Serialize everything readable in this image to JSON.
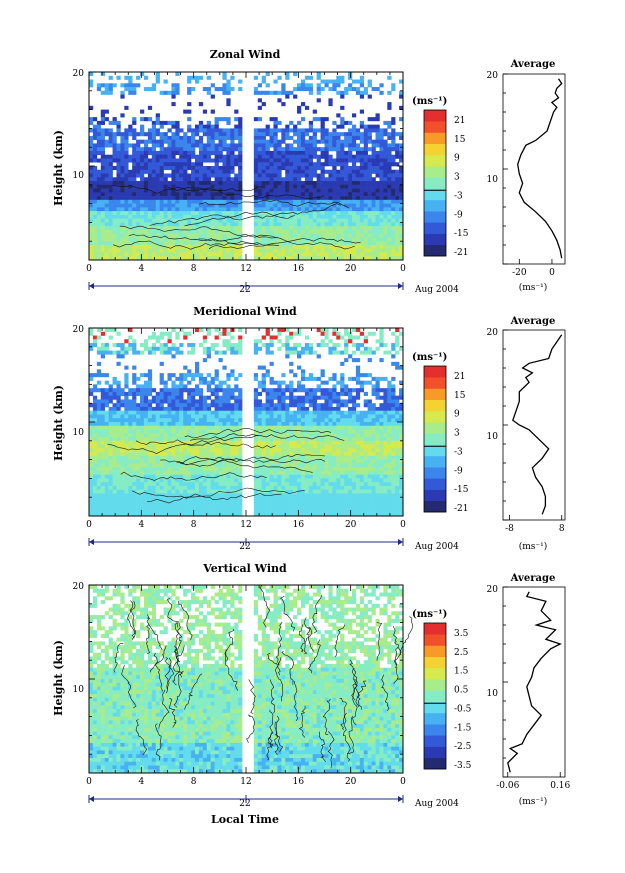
{
  "chart_data": [
    {
      "type": "heatmap",
      "title": "Zonal Wind",
      "ylabel": "Height (km)",
      "unit": "(ms⁻¹)",
      "x_ticks": [
        "0",
        "4",
        "8",
        "12",
        "16",
        "20",
        "0"
      ],
      "y_ticks": [
        "10",
        "20"
      ],
      "ylim": [
        0,
        20
      ],
      "xlim": [
        0,
        24
      ],
      "colorbar_ticks": [
        "21",
        "15",
        "9",
        "3",
        "-3",
        "-9",
        "-15",
        "-21"
      ],
      "date_day": "22",
      "date_label": "Aug 2004",
      "profile": {
        "title": "Average",
        "x_ticks": [
          "-20",
          "0"
        ],
        "xlim": [
          -30,
          8
        ],
        "xlabel": "(ms⁻¹)",
        "y_ticks": [
          "10",
          "20"
        ],
        "heights": [
          0.6,
          1.5,
          2.5,
          3.5,
          4.5,
          5.5,
          6.5,
          7.5,
          8.5,
          9.5,
          10.5,
          11.5,
          12.5,
          13.0,
          14.0,
          15.0,
          16.0,
          16.5,
          17.0,
          17.5,
          18.0,
          18.5,
          19.0,
          19.5
        ],
        "values": [
          6,
          5,
          3,
          0,
          -4,
          -10,
          -17,
          -20,
          -18,
          -20,
          -21,
          -19,
          -16,
          -10,
          -3,
          -1,
          1,
          3,
          0,
          4,
          2,
          3,
          6,
          4
        ]
      }
    },
    {
      "type": "heatmap",
      "title": "Meridional Wind",
      "ylabel": "Height (km)",
      "unit": "(ms⁻¹)",
      "x_ticks": [
        "0",
        "4",
        "8",
        "12",
        "16",
        "20",
        "0"
      ],
      "y_ticks": [
        "10",
        "20"
      ],
      "ylim": [
        0,
        20
      ],
      "xlim": [
        0,
        24
      ],
      "colorbar_ticks": [
        "21",
        "15",
        "9",
        "3",
        "-3",
        "-9",
        "-15",
        "-21"
      ],
      "date_day": "22",
      "date_label": "Aug 2004",
      "profile": {
        "title": "Average",
        "x_ticks": [
          "-8",
          "8"
        ],
        "xlim": [
          -10,
          9
        ],
        "xlabel": "(ms⁻¹)",
        "y_ticks": [
          "10",
          "20"
        ],
        "heights": [
          0.6,
          1.5,
          2.5,
          3.5,
          4.5,
          5.5,
          6.5,
          7.5,
          8.5,
          9.5,
          10.0,
          10.5,
          11.5,
          12.5,
          13.5,
          14.5,
          15.0,
          15.5,
          16.0,
          16.5,
          17.0,
          18.0,
          18.5,
          19.5
        ],
        "values": [
          2,
          3,
          3,
          2,
          0,
          -1,
          2,
          4,
          1,
          -2,
          -5,
          -7,
          -6,
          -5,
          -5,
          -2,
          -3,
          -1,
          -4,
          -2,
          4,
          5,
          6,
          8
        ]
      }
    },
    {
      "type": "heatmap",
      "title": "Vertical Wind",
      "ylabel": "Height (km)",
      "xlabel": "Local Time",
      "unit": "(ms⁻¹)",
      "x_ticks": [
        "0",
        "4",
        "8",
        "12",
        "16",
        "20",
        "0"
      ],
      "y_ticks": [
        "10",
        "20"
      ],
      "ylim": [
        0,
        20
      ],
      "xlim": [
        0,
        24
      ],
      "colorbar_ticks": [
        "3.5",
        "2.5",
        "1.5",
        "0.5",
        "-0.5",
        "-1.5",
        "-2.5",
        "-3.5"
      ],
      "date_day": "22",
      "date_label": "Aug 2004",
      "profile": {
        "title": "Average",
        "x_ticks": [
          "-0.06",
          "0.16"
        ],
        "xlim": [
          -0.08,
          0.18
        ],
        "xlabel": "(ms⁻¹)",
        "y_ticks": [
          "10",
          "20"
        ],
        "heights": [
          0.5,
          1.5,
          2.5,
          3.0,
          3.5,
          4.5,
          5.5,
          6.5,
          7.5,
          8.5,
          9.5,
          10.5,
          11.5,
          12.5,
          13.5,
          14.0,
          14.5,
          15.5,
          16.0,
          16.5,
          17.5,
          18.5,
          19.0,
          19.5
        ],
        "values": [
          -0.05,
          -0.06,
          -0.02,
          -0.05,
          0.0,
          0.02,
          0.05,
          0.08,
          0.04,
          0.03,
          0.02,
          0.04,
          0.05,
          0.08,
          0.12,
          0.16,
          0.1,
          0.14,
          0.06,
          0.12,
          0.08,
          0.1,
          0.02,
          0.03
        ]
      }
    }
  ],
  "colorbar_colors": [
    "#232a6f",
    "#2a3ab2",
    "#3358d8",
    "#3a86ec",
    "#47b2f2",
    "#62dcec",
    "#86ecc4",
    "#a8ec8c",
    "#d6ea4e",
    "#f5d233",
    "#f79a27",
    "#f0502a",
    "#e52e2e"
  ]
}
